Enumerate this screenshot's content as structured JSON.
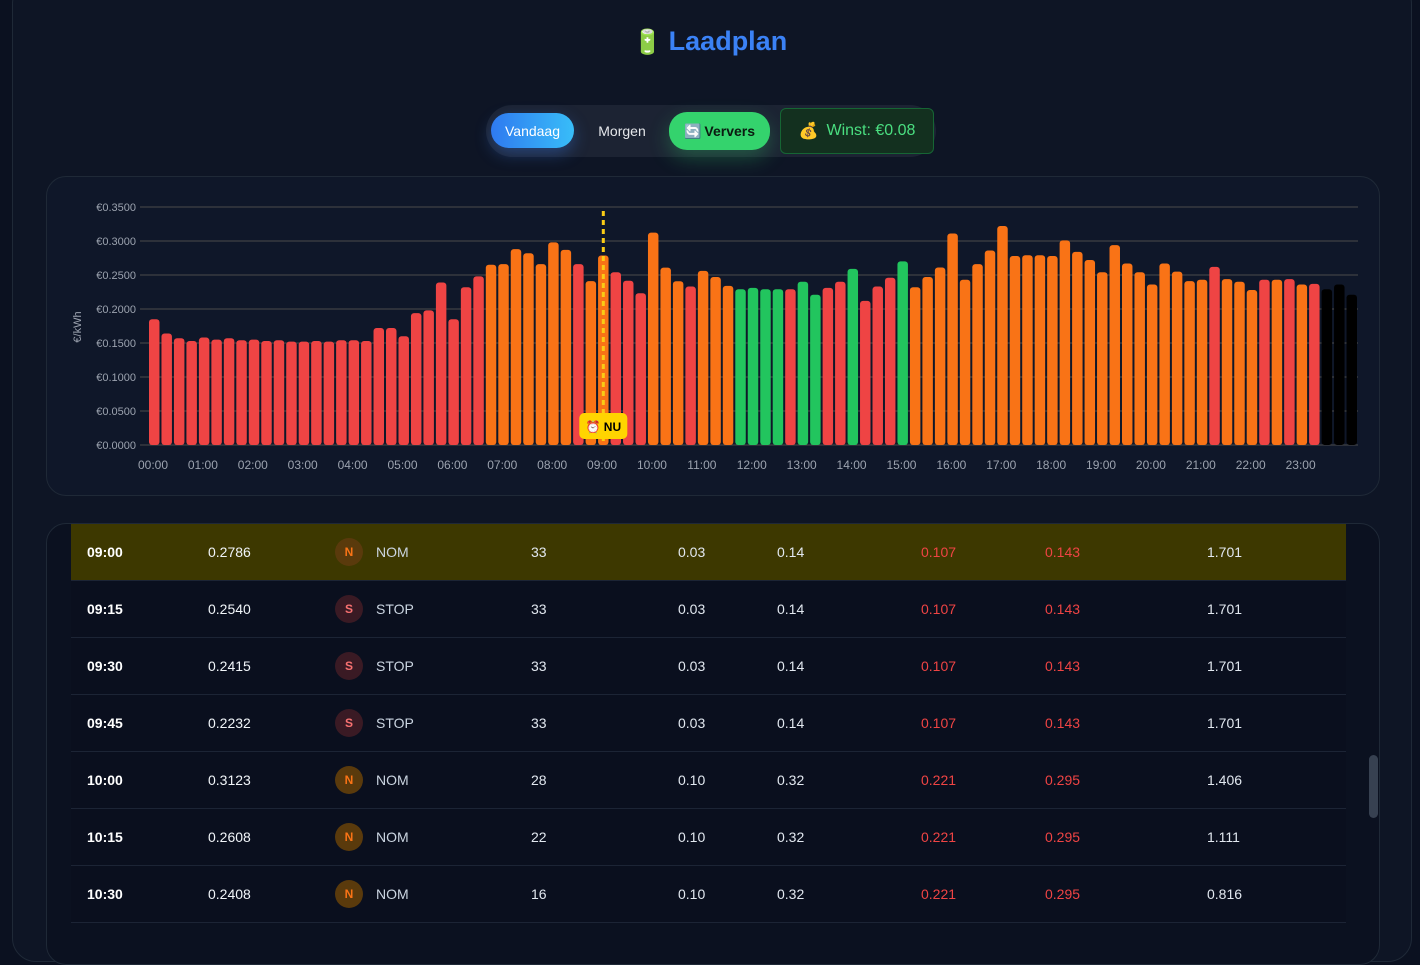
{
  "header": {
    "title": "Laadplan",
    "icon": "battery-icon"
  },
  "controls": {
    "today": "Vandaag",
    "tomorrow": "Morgen",
    "refresh": "Ververs",
    "refresh_icon": "refresh-icon",
    "profit": "Winst: €0.08",
    "profit_icon": "money-bag-icon"
  },
  "colors": {
    "expensive": "#ef4444",
    "normal": "#f97316",
    "cheap": "#22c55e",
    "now": "#facc15"
  },
  "chart_data": {
    "type": "bar",
    "ylabel": "€/kWh",
    "ylim": [
      0,
      0.35
    ],
    "yticks": [
      "€0.0000",
      "€0.0500",
      "€0.1000",
      "€0.1500",
      "€0.2000",
      "€0.2500",
      "€0.3000",
      "€0.3500"
    ],
    "xticks": [
      "00:00",
      "01:00",
      "02:00",
      "03:00",
      "04:00",
      "05:00",
      "06:00",
      "07:00",
      "08:00",
      "09:00",
      "10:00",
      "11:00",
      "12:00",
      "13:00",
      "14:00",
      "15:00",
      "16:00",
      "17:00",
      "18:00",
      "19:00",
      "20:00",
      "21:00",
      "22:00",
      "23:00"
    ],
    "now_label": "⏰ NU",
    "now_index": 36,
    "values": [
      0.185,
      0.164,
      0.157,
      0.153,
      0.158,
      0.155,
      0.157,
      0.154,
      0.155,
      0.153,
      0.154,
      0.152,
      0.152,
      0.153,
      0.152,
      0.154,
      0.154,
      0.153,
      0.172,
      0.172,
      0.16,
      0.194,
      0.198,
      0.239,
      0.185,
      0.232,
      0.248,
      0.265,
      0.266,
      0.288,
      0.282,
      0.266,
      0.298,
      0.287,
      0.266,
      0.241,
      0.2786,
      0.254,
      0.2415,
      0.2232,
      0.3123,
      0.2608,
      0.2408,
      0.233,
      0.256,
      0.247,
      0.234,
      0.229,
      0.231,
      0.229,
      0.229,
      0.229,
      0.24,
      0.221,
      0.231,
      0.24,
      0.259,
      0.212,
      0.233,
      0.246,
      0.27,
      0.232,
      0.247,
      0.261,
      0.311,
      0.243,
      0.266,
      0.286,
      0.322,
      0.278,
      0.279,
      0.279,
      0.278,
      0.301,
      0.284,
      0.272,
      0.254,
      0.294,
      0.267,
      0.254,
      0.236,
      0.267,
      0.255,
      0.241,
      0.243,
      0.262,
      0.244,
      0.24,
      0.228,
      0.243,
      0.243,
      0.244,
      0.236,
      0.237,
      0.229,
      0.236,
      0.221
    ],
    "categories": "RRRRRRRRRRRRRRRRRRRRRRRRRRROOOOOOOROORRROOOROOOGGGGRGGRRGRRRGOOOOOOOOOOOOOOOOOOOOOOOOROOOROROR"
  },
  "table": {
    "rows": [
      {
        "time": "09:00",
        "price": "0.2786",
        "badge": "N",
        "status": "NOM",
        "c4": "33",
        "c5": "0.03",
        "c6": "0.14",
        "c7": "0.107",
        "c8": "0.143",
        "c9": "1.701",
        "now": true
      },
      {
        "time": "09:15",
        "price": "0.2540",
        "badge": "S",
        "status": "STOP",
        "c4": "33",
        "c5": "0.03",
        "c6": "0.14",
        "c7": "0.107",
        "c8": "0.143",
        "c9": "1.701"
      },
      {
        "time": "09:30",
        "price": "0.2415",
        "badge": "S",
        "status": "STOP",
        "c4": "33",
        "c5": "0.03",
        "c6": "0.14",
        "c7": "0.107",
        "c8": "0.143",
        "c9": "1.701"
      },
      {
        "time": "09:45",
        "price": "0.2232",
        "badge": "S",
        "status": "STOP",
        "c4": "33",
        "c5": "0.03",
        "c6": "0.14",
        "c7": "0.107",
        "c8": "0.143",
        "c9": "1.701"
      },
      {
        "time": "10:00",
        "price": "0.3123",
        "badge": "N",
        "status": "NOM",
        "c4": "28",
        "c5": "0.10",
        "c6": "0.32",
        "c7": "0.221",
        "c8": "0.295",
        "c9": "1.406"
      },
      {
        "time": "10:15",
        "price": "0.2608",
        "badge": "N",
        "status": "NOM",
        "c4": "22",
        "c5": "0.10",
        "c6": "0.32",
        "c7": "0.221",
        "c8": "0.295",
        "c9": "1.111"
      },
      {
        "time": "10:30",
        "price": "0.2408",
        "badge": "N",
        "status": "NOM",
        "c4": "16",
        "c5": "0.10",
        "c6": "0.32",
        "c7": "0.221",
        "c8": "0.295",
        "c9": "0.816"
      }
    ]
  }
}
